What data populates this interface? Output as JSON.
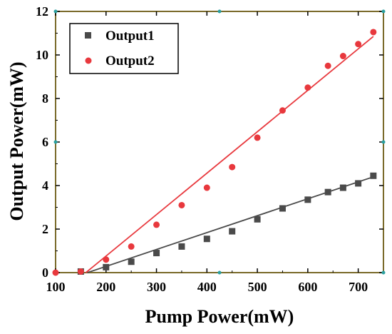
{
  "chart_data": {
    "type": "scatter",
    "xlabel": "Pump Power(mW)",
    "ylabel": "Output Power(mW)",
    "xlim": [
      100,
      750
    ],
    "ylim": [
      0,
      12
    ],
    "xticks": [
      100,
      200,
      300,
      400,
      500,
      600,
      700
    ],
    "yticks": [
      0,
      2,
      4,
      6,
      8,
      10,
      12
    ],
    "grid": false,
    "legend_position": "top-left",
    "series": [
      {
        "name": "Output1",
        "marker": "square",
        "color": "#4a4a4a",
        "x": [
          150,
          200,
          250,
          300,
          350,
          400,
          450,
          500,
          550,
          600,
          640,
          670,
          700,
          730
        ],
        "y": [
          0.05,
          0.25,
          0.5,
          0.9,
          1.2,
          1.55,
          1.9,
          2.45,
          2.95,
          3.35,
          3.7,
          3.9,
          4.1,
          4.45
        ],
        "fit": {
          "x": [
            163,
            730
          ],
          "y": [
            0,
            4.4
          ]
        }
      },
      {
        "name": "Output2",
        "marker": "circle",
        "color": "#e8383d",
        "x": [
          100,
          150,
          200,
          250,
          300,
          350,
          400,
          450,
          500,
          550,
          600,
          640,
          670,
          700,
          730
        ],
        "y": [
          0.0,
          0.05,
          0.6,
          1.2,
          2.2,
          3.1,
          3.9,
          4.85,
          6.2,
          7.45,
          8.5,
          9.5,
          9.95,
          10.5,
          11.05
        ],
        "fit": {
          "x": [
            160,
            730
          ],
          "y": [
            0,
            10.85
          ]
        }
      }
    ]
  }
}
